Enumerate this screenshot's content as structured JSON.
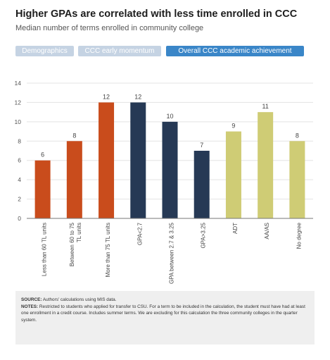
{
  "header": {
    "title": "Higher GPAs are correlated with less time enrolled in CCC",
    "subtitle": "Median number of terms enrolled in community college"
  },
  "tabs": [
    {
      "label": "Demographics",
      "active": false
    },
    {
      "label": "CCC early momentum",
      "active": false
    },
    {
      "label": "Overall CCC academic achievement",
      "active": true
    }
  ],
  "colors": {
    "group1": "#c94c1c",
    "group2": "#263955",
    "group3": "#cfcc75",
    "tab_active": "#3a86c8",
    "tab_inactive": "#c5d3e3",
    "gridline": "#e3e3e3",
    "axis": "#777777"
  },
  "chart_data": {
    "type": "bar",
    "categories": [
      "Less than 60 TL units",
      "Between 60 to 75 TL units",
      "More than 75 TL units",
      "GPA<2.7",
      "GPA between 2.7 & 3.25",
      "GPA>3.25",
      "ADT",
      "AA/AS",
      "No degree"
    ],
    "values": [
      6,
      8,
      12,
      12,
      10,
      7,
      9,
      11,
      8
    ],
    "groups": [
      1,
      1,
      1,
      2,
      2,
      2,
      3,
      3,
      3
    ],
    "yticks": [
      0,
      2,
      4,
      6,
      8,
      10,
      12,
      14
    ],
    "ylim": [
      0,
      14
    ],
    "grid": true
  },
  "footer": {
    "source_label": "SOURCE:",
    "source_text": " Authors' calculations using MIS data.",
    "notes_label": "NOTES:",
    "notes_text": " Restricted to students who applied for transfer to CSU. For a term to be included in the calculation, the student must have had at least one enrollment in a credit course. Includes summer terms. We are excluding for this calculation the three community colleges in the quarter system."
  }
}
